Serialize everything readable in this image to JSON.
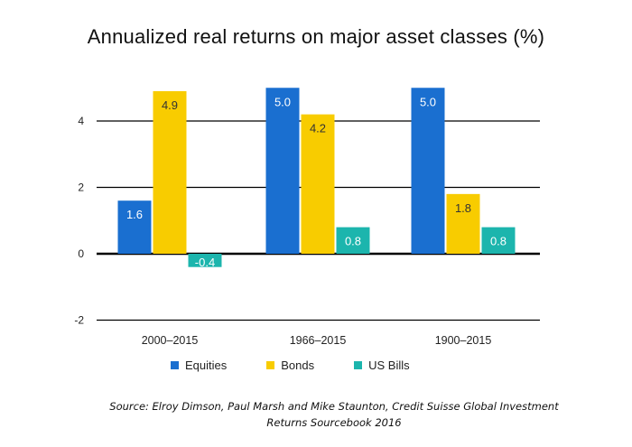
{
  "chart_data": {
    "type": "bar",
    "title": "Annualized real returns on major asset classes (%)",
    "xlabel": "",
    "ylabel": "",
    "categories": [
      "2000–2015",
      "1966–2015",
      "1900–2015"
    ],
    "series": [
      {
        "name": "Equities",
        "color": "#1a6fd0",
        "values": [
          1.6,
          5.0,
          5.0
        ],
        "labels": [
          "1.6",
          "5.0",
          "5.0"
        ]
      },
      {
        "name": "Bonds",
        "color": "#f8cc00",
        "values": [
          4.9,
          4.2,
          1.8
        ],
        "labels": [
          "4.9",
          "4.2",
          "1.8"
        ]
      },
      {
        "name": "US Bills",
        "color": "#1cb5ad",
        "values": [
          -0.4,
          0.8,
          0.8
        ],
        "labels": [
          "-0.4",
          "0.8",
          "0.8"
        ]
      }
    ],
    "yticks": [
      -2,
      0,
      2,
      4
    ],
    "ylim": [
      -2,
      5
    ],
    "grid": true,
    "legend_position": "bottom"
  },
  "source_note": "Source: Elroy Dimson, Paul Marsh and Mike Staunton, Credit Suisse Global Investment Returns Sourcebook 2016"
}
